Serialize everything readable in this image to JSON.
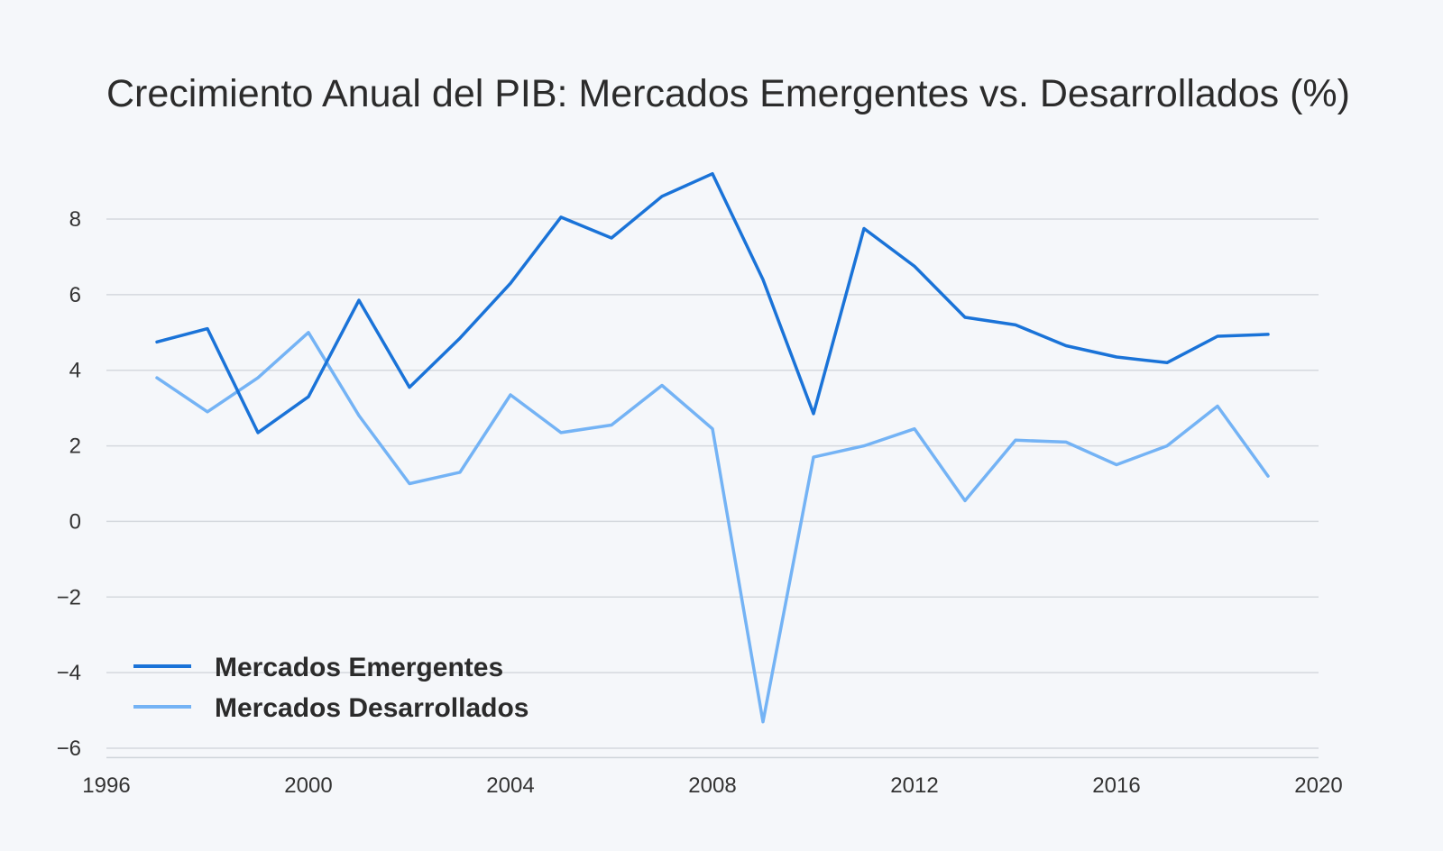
{
  "chart_data": {
    "type": "line",
    "title": "Crecimiento Anual del PIB: Mercados Emergentes vs. Desarrollados (%)",
    "xlabel": "",
    "ylabel": "",
    "xlim": [
      1996,
      2020
    ],
    "ylim": [
      -6.2,
      9.5
    ],
    "x_ticks": [
      "1996",
      "2000",
      "2004",
      "2008",
      "2012",
      "2016",
      "2020"
    ],
    "y_ticks": [
      "−6",
      "−4",
      "−2",
      "0",
      "2",
      "4",
      "6",
      "8"
    ],
    "grid": "horizontal",
    "legend_position": "bottom-left",
    "x": [
      1997,
      1998,
      1999,
      2000,
      2001,
      2002,
      2003,
      2004,
      2005,
      2006,
      2007,
      2008,
      2009,
      2010,
      2011,
      2012,
      2013,
      2014,
      2015,
      2016,
      2017,
      2018,
      2019
    ],
    "series": [
      {
        "name": "Mercados Emergentes",
        "color": "#1a73d8",
        "values": [
          4.75,
          5.1,
          2.35,
          3.3,
          5.85,
          3.55,
          4.85,
          6.3,
          8.05,
          7.5,
          8.6,
          9.2,
          6.4,
          2.85,
          7.75,
          6.75,
          5.4,
          5.2,
          4.65,
          4.35,
          4.2,
          4.9,
          4.95
        ]
      },
      {
        "name": "Mercados Desarrollados",
        "color": "#74b3f5",
        "values": [
          3.8,
          2.9,
          3.8,
          5.0,
          2.8,
          1.0,
          1.3,
          3.35,
          2.35,
          2.55,
          3.6,
          2.45,
          -5.3,
          1.7,
          2.0,
          2.45,
          0.55,
          2.15,
          2.1,
          1.5,
          2.0,
          3.05,
          1.2
        ]
      }
    ]
  }
}
